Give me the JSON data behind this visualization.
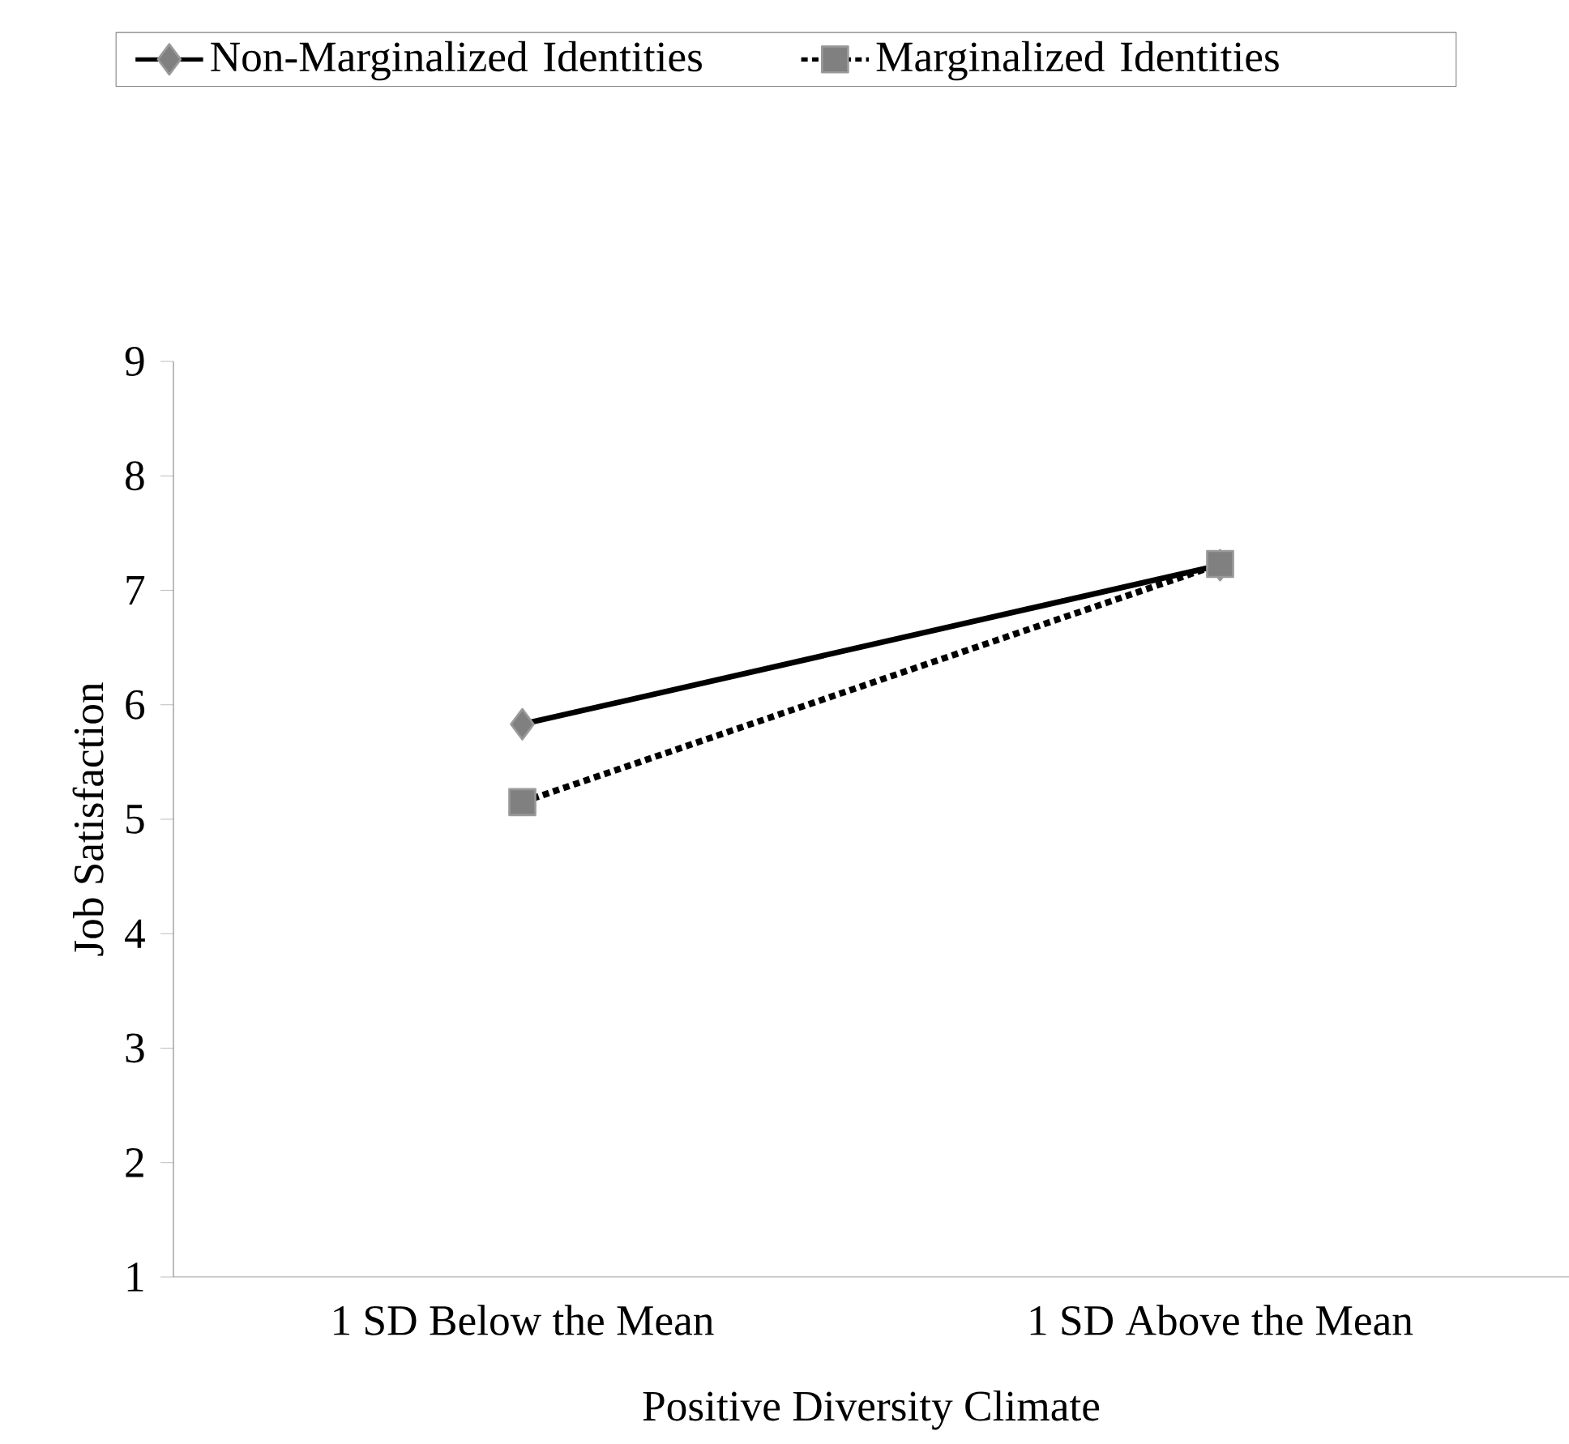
{
  "chart_data": {
    "type": "line",
    "xlabel": "Positive Diversity Climate",
    "ylabel": "Job Satisfaction",
    "categories": [
      "1 SD Below the Mean",
      "1 SD Above the Mean"
    ],
    "series": [
      {
        "name": "Non-Marginalized Identities",
        "color": "#000000",
        "marker": "diamond",
        "line_style": "solid",
        "values": [
          5.83,
          7.22
        ]
      },
      {
        "name": "Marginalized Identities",
        "color": "#000000",
        "marker": "square",
        "line_style": "dotted",
        "values": [
          5.15,
          7.23
        ]
      }
    ],
    "ylim": [
      1,
      9
    ],
    "yticks": [
      1,
      2,
      3,
      4,
      5,
      6,
      7,
      8,
      9
    ],
    "grid": false,
    "legend": "top"
  }
}
